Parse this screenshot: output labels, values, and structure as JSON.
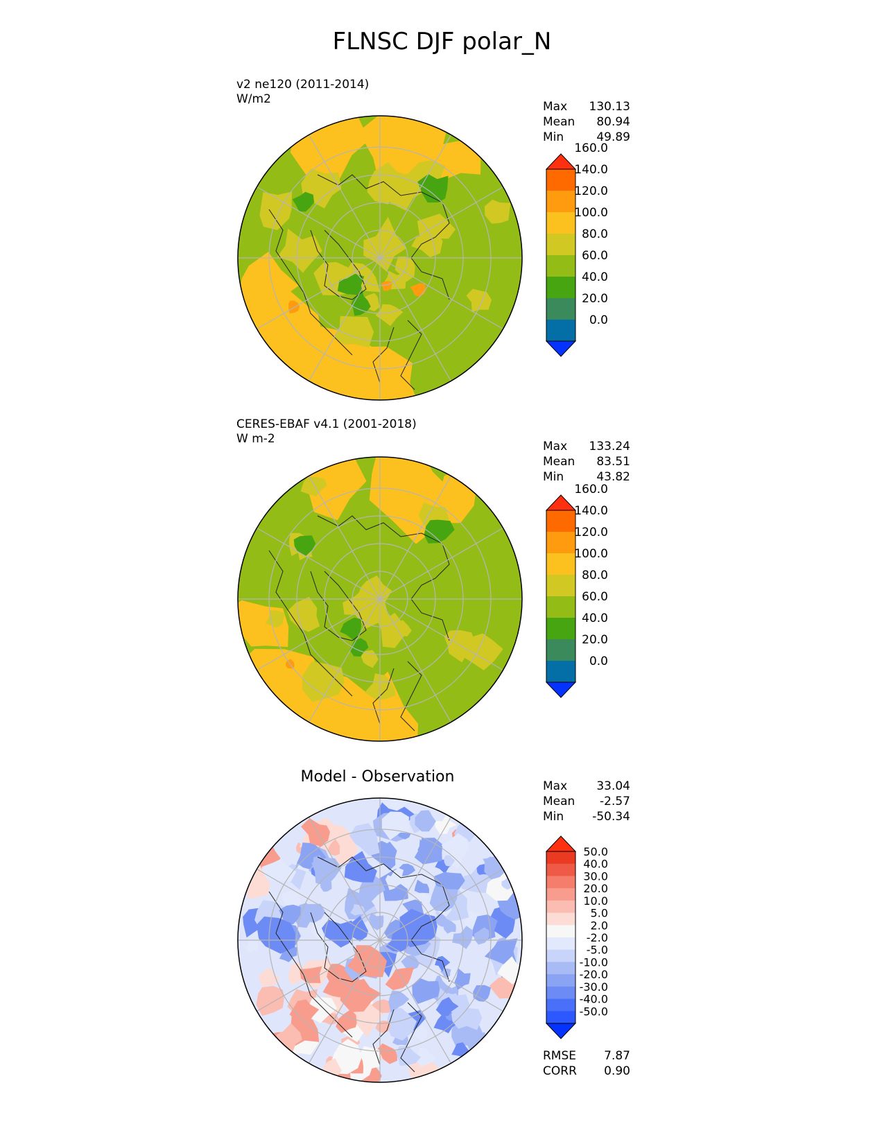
{
  "figure": {
    "title": "FLNSC DJF polar_N"
  },
  "panels": [
    {
      "name": "test",
      "label_line1": "v2 ne120 (2011-2014)",
      "label_line2": "W/m2",
      "stats": [
        {
          "label": "Max",
          "value": "130.13"
        },
        {
          "label": "Mean",
          "value": "80.94"
        },
        {
          "label": "Min",
          "value": "49.89"
        }
      ]
    },
    {
      "name": "reference",
      "label_line1": "CERES-EBAF v4.1 (2001-2018)",
      "label_line2": "W m-2",
      "stats": [
        {
          "label": "Max",
          "value": "133.24"
        },
        {
          "label": "Mean",
          "value": "83.51"
        },
        {
          "label": "Min",
          "value": "43.82"
        }
      ]
    },
    {
      "name": "difference",
      "title": "Model - Observation",
      "stats": [
        {
          "label": "Max",
          "value": "33.04"
        },
        {
          "label": "Mean",
          "value": "-2.57"
        },
        {
          "label": "Min",
          "value": "-50.34"
        }
      ],
      "metrics": [
        {
          "label": "RMSE",
          "value": "7.87"
        },
        {
          "label": "CORR",
          "value": "0.90"
        }
      ]
    }
  ],
  "chart_data": [
    {
      "type": "heatmap",
      "projection": "north polar stereographic",
      "title": "v2 ne120 (2011-2014)",
      "units": "W/m2",
      "colorbar": {
        "levels": [
          0,
          20,
          40,
          60,
          80,
          100,
          120,
          140,
          160
        ],
        "tick_labels": [
          "0.0",
          "20.0",
          "40.0",
          "60.0",
          "80.0",
          "100.0",
          "120.0",
          "140.0",
          "160.0"
        ],
        "colors": [
          "#0433ff",
          "#046ea6",
          "#3a8a5c",
          "#47a512",
          "#94bc16",
          "#d2c823",
          "#fcc11f",
          "#ff9b0f",
          "#ff6a00",
          "#ff300f"
        ],
        "extend": "both"
      },
      "summary": {
        "max": 130.13,
        "mean": 80.94,
        "min": 49.89
      }
    },
    {
      "type": "heatmap",
      "projection": "north polar stereographic",
      "title": "CERES-EBAF v4.1 (2001-2018)",
      "units": "W m-2",
      "colorbar": {
        "levels": [
          0,
          20,
          40,
          60,
          80,
          100,
          120,
          140,
          160
        ],
        "tick_labels": [
          "0.0",
          "20.0",
          "40.0",
          "60.0",
          "80.0",
          "100.0",
          "120.0",
          "140.0",
          "160.0"
        ],
        "colors": [
          "#0433ff",
          "#046ea6",
          "#3a8a5c",
          "#47a512",
          "#94bc16",
          "#d2c823",
          "#fcc11f",
          "#ff9b0f",
          "#ff6a00",
          "#ff300f"
        ],
        "extend": "both"
      },
      "summary": {
        "max": 133.24,
        "mean": 83.51,
        "min": 43.82
      }
    },
    {
      "type": "heatmap",
      "projection": "north polar stereographic",
      "title": "Model - Observation",
      "colorbar": {
        "levels": [
          -50,
          -40,
          -30,
          -20,
          -10,
          -5,
          -2,
          2,
          5,
          10,
          20,
          30,
          40,
          50
        ],
        "tick_labels": [
          "-50.0",
          "-40.0",
          "-30.0",
          "-20.0",
          "-10.0",
          "-5.0",
          "-2.0",
          "2.0",
          "5.0",
          "10.0",
          "20.0",
          "30.0",
          "40.0",
          "50.0"
        ],
        "colors": [
          "#0433ff",
          "#2e58ff",
          "#4a6ff8",
          "#6d8bf4",
          "#8aa3f3",
          "#a8bbf5",
          "#c8d4f9",
          "#e3e9fc",
          "#f7f7f7",
          "#fcdcd5",
          "#fbbdb1",
          "#f89d8e",
          "#f47d6c",
          "#ef5a46",
          "#eb3a22",
          "#ff300f"
        ],
        "extend": "both"
      },
      "summary": {
        "max": 33.04,
        "mean": -2.57,
        "min": -50.34,
        "rmse": 7.87,
        "corr": 0.9
      }
    }
  ]
}
